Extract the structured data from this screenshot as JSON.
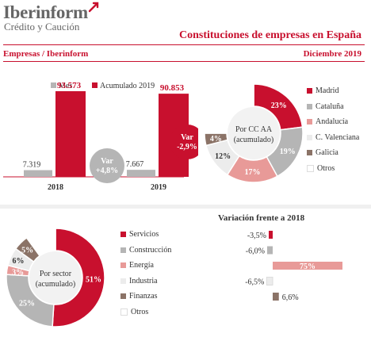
{
  "header": {
    "brand": "Iberinform",
    "tagline": "Crédito y Caución",
    "title": "Constituciones de empresas en España",
    "source": "Empresas / Iberinform",
    "period": "Diciembre 2019"
  },
  "colors": {
    "red": "#c8102e",
    "gray": "#b5b5b5",
    "pink": "#e89a98",
    "light": "#ececec",
    "brown": "#8b7367",
    "white": "#ffffff"
  },
  "chart_data": [
    {
      "type": "bar",
      "categories": [
        "2018",
        "2019"
      ],
      "series": [
        {
          "name": "Mes",
          "values": [
            7319,
            7667
          ],
          "labels": [
            "7.319",
            "7.667"
          ]
        },
        {
          "name": "Acumulado 2019",
          "values": [
            93573,
            90853
          ],
          "labels": [
            "93.573",
            "90.853"
          ]
        }
      ],
      "annotations": {
        "mes": {
          "line1": "Var",
          "line2": "+4,8%"
        },
        "acumulado": {
          "line1": "Var",
          "line2": "-2,9%"
        }
      }
    },
    {
      "type": "pie",
      "center_line1": "Por CC AA",
      "center_line2": "(acumulado)",
      "labels": [
        "Madrid",
        "Cataluña",
        "Andalucía",
        "C. Valenciana",
        "Galicia",
        "Otros"
      ],
      "values": [
        23,
        19,
        17,
        12,
        4,
        25
      ],
      "value_labels": [
        "23%",
        "19%",
        "17%",
        "12%",
        "4%",
        ""
      ],
      "colors": [
        "#c8102e",
        "#b5b5b5",
        "#e89a98",
        "#ececec",
        "#8b7367",
        "#ffffff"
      ]
    },
    {
      "type": "pie",
      "center_line1": "Por sector",
      "center_line2": "(acumulado)",
      "labels": [
        "Servicios",
        "Construcción",
        "Energía",
        "Industria",
        "Finanzas",
        "Otros"
      ],
      "values": [
        51,
        25,
        3,
        6,
        5,
        10
      ],
      "value_labels": [
        "51%",
        "25%",
        "3%",
        "6%",
        "5%",
        ""
      ],
      "colors": [
        "#c8102e",
        "#b5b5b5",
        "#e89a98",
        "#ececec",
        "#8b7367",
        "#ffffff"
      ]
    },
    {
      "type": "bar",
      "orientation": "horizontal",
      "title": "Variación frente a 2018",
      "categories": [
        "Servicios",
        "Construcción",
        "Energía",
        "Industria",
        "Finanzas"
      ],
      "values": [
        -3.5,
        -6.0,
        75,
        -6.5,
        6.6
      ],
      "value_labels": [
        "-3,5%",
        "-6,0%",
        "75%",
        "-6,5%",
        "6,6%"
      ],
      "colors": [
        "#c8102e",
        "#b5b5b5",
        "#e89a98",
        "#ececec",
        "#8b7367"
      ]
    }
  ]
}
